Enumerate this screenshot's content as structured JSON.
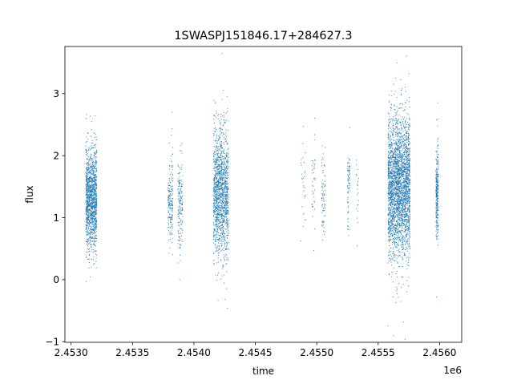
{
  "chart_data": {
    "type": "scatter",
    "title": "1SWASPJ151846.17+284627.3",
    "xlabel": "time",
    "ylabel": "flux",
    "x_offset_label": "1e6",
    "xlim": [
      2452950,
      2456180
    ],
    "ylim": [
      -1.01,
      3.76
    ],
    "x_ticks": [
      2453000,
      2453500,
      2454000,
      2454500,
      2455000,
      2455500,
      2456000
    ],
    "x_tick_labels": [
      "2.4530",
      "2.4535",
      "2.4540",
      "2.4545",
      "2.4550",
      "2.4555",
      "2.4560"
    ],
    "y_ticks": [
      -1,
      0,
      1,
      2,
      3
    ],
    "y_tick_labels": [
      "−1",
      "0",
      "1",
      "2",
      "3"
    ],
    "grid": false,
    "marker_color": "#1f77b4",
    "point_clusters": [
      {
        "time_range": [
          2453120,
          2453210
        ],
        "flux_mean": 1.3,
        "flux_sd": 0.4,
        "approx_points": 1400
      },
      {
        "time_range": [
          2453790,
          2453830
        ],
        "flux_mean": 1.25,
        "flux_sd": 0.35,
        "approx_points": 200
      },
      {
        "time_range": [
          2453870,
          2453910
        ],
        "flux_mean": 1.2,
        "flux_sd": 0.35,
        "approx_points": 180
      },
      {
        "time_range": [
          2454160,
          2454280
        ],
        "flux_mean": 1.4,
        "flux_sd": 0.5,
        "approx_points": 1500
      },
      {
        "time_range": [
          2454870,
          2454910
        ],
        "flux_mean": 1.5,
        "flux_sd": 0.35,
        "approx_points": 30
      },
      {
        "time_range": [
          2454960,
          2454990
        ],
        "flux_mean": 1.5,
        "flux_sd": 0.4,
        "approx_points": 40
      },
      {
        "time_range": [
          2455040,
          2455070
        ],
        "flux_mean": 1.35,
        "flux_sd": 0.35,
        "approx_points": 80
      },
      {
        "time_range": [
          2455250,
          2455270
        ],
        "flux_mean": 1.6,
        "flux_sd": 0.35,
        "approx_points": 80
      },
      {
        "time_range": [
          2455320,
          2455340
        ],
        "flux_mean": 1.4,
        "flux_sd": 0.4,
        "approx_points": 20
      },
      {
        "time_range": [
          2455580,
          2455760
        ],
        "flux_mean": 1.5,
        "flux_sd": 0.55,
        "approx_points": 3000
      },
      {
        "time_range": [
          2455970,
          2455990
        ],
        "flux_mean": 1.4,
        "flux_sd": 0.35,
        "approx_points": 300
      }
    ]
  }
}
